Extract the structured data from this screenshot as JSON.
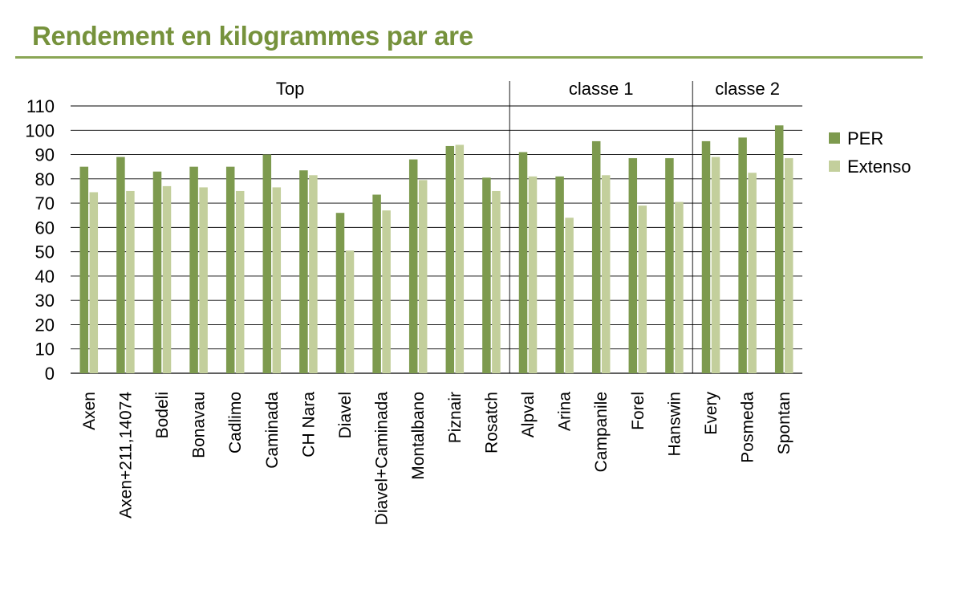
{
  "title": "Rendement en kilogrammes par are",
  "colors": {
    "title": "#76923c",
    "rule": "#8aa655",
    "per": "#7d9a4e",
    "extenso": "#c3cf9c"
  },
  "chart_data": {
    "type": "bar",
    "title": "Rendement en kilogrammes par are",
    "xlabel": "",
    "ylabel": "",
    "ylim": [
      0,
      110
    ],
    "yticks": [
      0,
      10,
      20,
      30,
      40,
      50,
      60,
      70,
      80,
      90,
      100,
      110
    ],
    "grid": true,
    "legend": "right",
    "categories": [
      "Axen",
      "Axen+211,14074",
      "Bodeli",
      "Bonavau",
      "Cadlimo",
      "Caminada",
      "CH Nara",
      "Diavel",
      "Diavel+Caminada",
      "Montalbano",
      "Piznair",
      "Rosatch",
      "Alpval",
      "Arina",
      "Campanile",
      "Forel",
      "Hanswin",
      "Every",
      "Posmeda",
      "Spontan"
    ],
    "groups": [
      {
        "label": "Top",
        "start": 0,
        "end": 11
      },
      {
        "label": "classe 1",
        "start": 12,
        "end": 16
      },
      {
        "label": "classe 2",
        "start": 17,
        "end": 19
      }
    ],
    "series": [
      {
        "name": "PER",
        "values": [
          85,
          89,
          83,
          85,
          85,
          90,
          83.5,
          66,
          73.5,
          88,
          93.5,
          80.5,
          91,
          81,
          95.5,
          88.5,
          88.5,
          95.5,
          97,
          102
        ]
      },
      {
        "name": "Extenso",
        "values": [
          74.5,
          75,
          77,
          76.5,
          75,
          76.5,
          81.5,
          50.5,
          67,
          79.5,
          94,
          75,
          81,
          64,
          81.5,
          69,
          70.5,
          89,
          82.5,
          88.5
        ]
      }
    ]
  }
}
